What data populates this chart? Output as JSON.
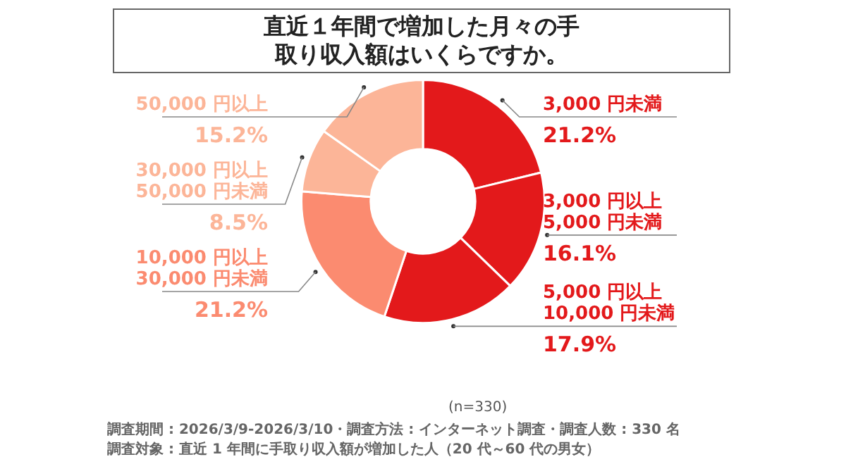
{
  "chart_data": {
    "type": "donut",
    "title": "直近１年間で増加した月々の手取り収入額はいくらですか。",
    "categories": [
      "3,000 円未満",
      "3,000 円以上\n5,000 円未満",
      "5,000 円以上\n10,000 円未満",
      "10,000 円以上\n30,000 円未満",
      "30,000 円以上\n50,000 円未満",
      "50,000 円以上"
    ],
    "values": [
      21.2,
      16.1,
      17.9,
      21.2,
      8.5,
      15.2
    ],
    "colors": [
      "#e3191b",
      "#e3191b",
      "#e3191b",
      "#fb8b70",
      "#fcb598",
      "#fcb598"
    ],
    "value_labels": [
      "21.2%",
      "16.1%",
      "17.9%",
      "21.2%",
      "8.5%",
      "15.2%"
    ],
    "annotations": [
      "(n=330)",
      "調査期間 : 2026/3/9-2026/3/10・調査方法 : インターネット調査・調査人数 : 330 名",
      "調査対象 : 直近 1 年間に手取り収入額が増加した人（20 代～60 代の男女）"
    ]
  }
}
